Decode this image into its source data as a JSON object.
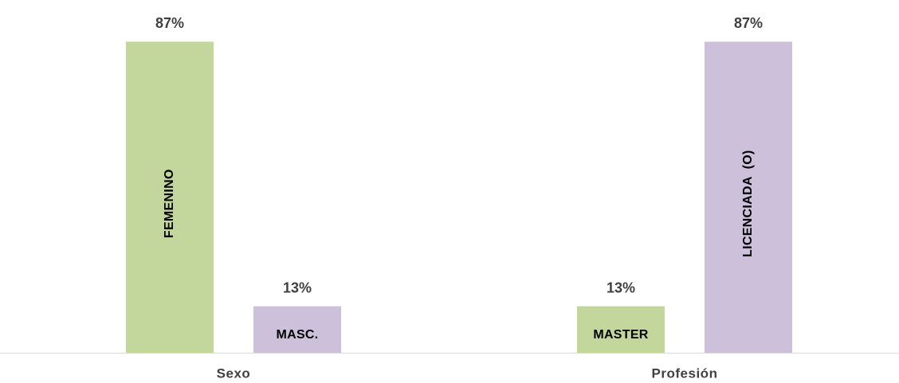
{
  "chart_data": {
    "type": "bar",
    "categories": [
      "Sexo",
      "Profesión"
    ],
    "series": [
      {
        "color": "#c3d69b",
        "values": [
          87,
          13
        ],
        "value_labels": [
          "87%",
          "13%"
        ],
        "bar_labels": [
          "FEMENINO",
          "MASTER"
        ]
      },
      {
        "color": "#ccc0da",
        "values": [
          13,
          87
        ],
        "value_labels": [
          "13%",
          "87%"
        ],
        "bar_labels": [
          "MASC.",
          "LICENCIADA  (O)"
        ]
      }
    ],
    "ylim": [
      0,
      100
    ]
  }
}
